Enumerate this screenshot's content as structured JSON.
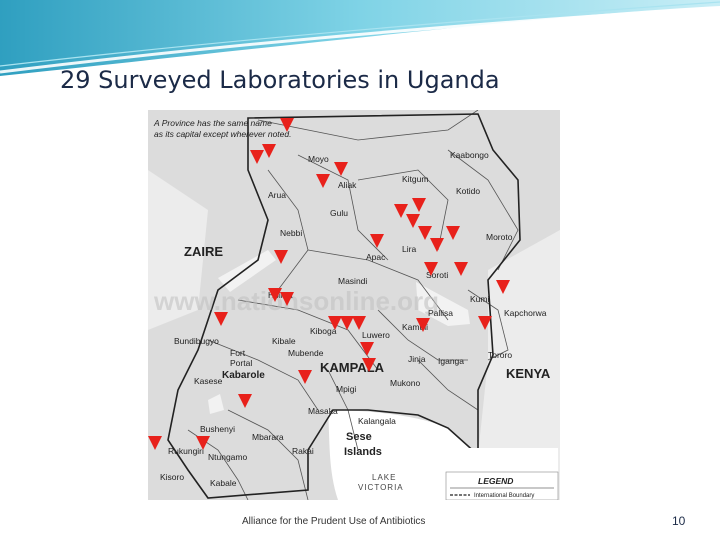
{
  "slide": {
    "title": "29 Surveyed Laboratories in Uganda",
    "footer": "Alliance for the Prudent Use of Antibiotics",
    "page_number": "10"
  },
  "map": {
    "note_line1": "A Province has the same name",
    "note_line2": "as its capital except wherever noted.",
    "watermark": "www.nationsonline.org",
    "neighbors": {
      "west": "ZAIRE",
      "east": "KENYA",
      "lake": "LAKE",
      "lake2": "VICTORIA"
    },
    "capital": "KAMPALA",
    "islands_line1": "Sese",
    "islands_line2": "Islands",
    "legend_title": "LEGEND",
    "legend_item": "International Boundary",
    "towns": {
      "kaabongo": "Kaabongo",
      "moyo": "Moyo",
      "aliak": "Aliak",
      "kitgum": "Kitgum",
      "kotido": "Kotido",
      "arua": "Arua",
      "gulu": "Gulu",
      "nebbi": "Nebbi",
      "moroto": "Moroto",
      "lira": "Lira",
      "apac": "Apac",
      "soroti": "Soroti",
      "masindi": "Masindi",
      "kumi": "Kumi",
      "hoima": "Hoima",
      "kapchorwa": "Kapchorwa",
      "pallisa": "Pallisa",
      "bundibugyo": "Bundibugyo",
      "kiboga": "Kiboga",
      "luwero": "Luwero",
      "kamuli": "Kamuli",
      "kibale": "Kibale",
      "fort_portal_1": "Fort",
      "fort_portal_2": "Portal",
      "mubende": "Mubende",
      "jinja": "Jinja",
      "iganga": "Iganga",
      "tororo": "Tororo",
      "kabarole": "Kabarole",
      "kasese": "Kasese",
      "mukono": "Mukono",
      "mpigi": "Mpigi",
      "masaka": "Masaka",
      "bushenyi": "Bushenyi",
      "kalangala": "Kalangala",
      "mbarara": "Mbarara",
      "rukungiri": "Rukungiri",
      "ntungamo": "Ntungamo",
      "rakai": "Rakai",
      "kisoro": "Kisoro",
      "kabale": "Kabale"
    },
    "marker_color": "#e8211b",
    "laboratory_count": 29
  }
}
